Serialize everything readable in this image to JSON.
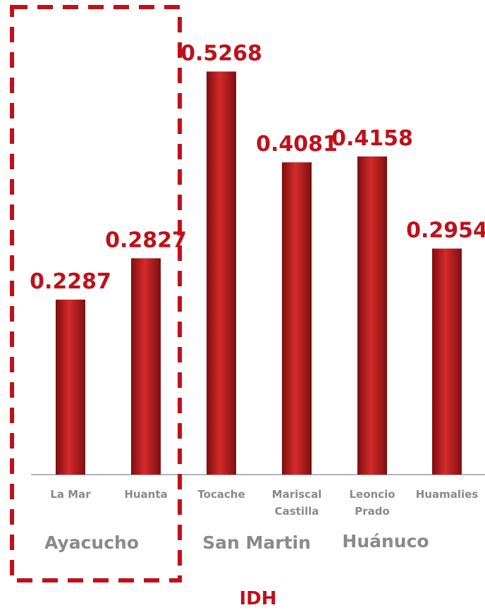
{
  "chart_data": {
    "type": "bar",
    "title": "",
    "xlabel": "IDH",
    "ylabel": "",
    "ylim": [
      0,
      0.6
    ],
    "grid": false,
    "legend": "none",
    "categories": [
      [
        "La Mar"
      ],
      [
        "Huanta"
      ],
      [
        "Tocache"
      ],
      [
        "Mariscal",
        "Castilla"
      ],
      [
        "Leoncio",
        "Prado"
      ],
      [
        "Huamalies"
      ]
    ],
    "values": [
      0.2287,
      0.2827,
      0.5268,
      0.4081,
      0.4158,
      0.2954
    ],
    "value_labels": [
      "0.2287",
      "0.2827",
      "0.5268",
      "0.4081",
      "0.4158",
      "0.2954"
    ],
    "groups": [
      {
        "label": "Ayacucho",
        "highlighted": true
      },
      {
        "label": "San Martin",
        "highlighted": false
      },
      {
        "label": "Huánuco",
        "highlighted": false
      }
    ],
    "colors": {
      "bar": "#d42a2a",
      "bar_dark": "#7e0e10",
      "value_label": "#c0101a",
      "tick_label": "#8a8a8a",
      "axis": "#9a9a9a",
      "highlight_box": "#c0101a",
      "xlabel": "#c0101a"
    }
  }
}
